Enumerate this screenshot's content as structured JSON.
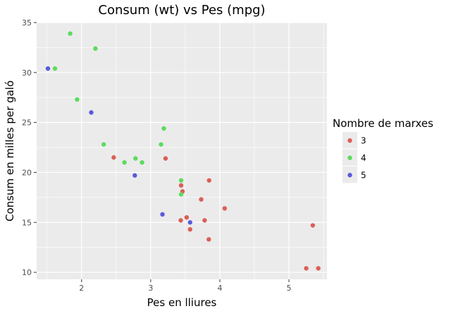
{
  "chart_data": {
    "type": "scatter",
    "title": "Consum (wt) vs Pes (mpg)",
    "xlabel": "Pes en lliures",
    "ylabel": "Consum en milles per galó",
    "xlim": [
      1.35,
      5.55
    ],
    "ylim": [
      9.3,
      35.0
    ],
    "xticks": [
      2,
      3,
      4,
      5
    ],
    "yticks": [
      10,
      15,
      20,
      25,
      30,
      35
    ],
    "grid": true,
    "legend": {
      "title": "Nombre de marxes",
      "placement": "right"
    },
    "series": [
      {
        "name": "3",
        "color": "#db5f57",
        "points": [
          {
            "x": 2.465,
            "y": 21.5
          },
          {
            "x": 3.215,
            "y": 21.4
          },
          {
            "x": 3.44,
            "y": 18.7
          },
          {
            "x": 3.46,
            "y": 18.1
          },
          {
            "x": 3.57,
            "y": 14.3
          },
          {
            "x": 4.07,
            "y": 16.4
          },
          {
            "x": 3.73,
            "y": 17.3
          },
          {
            "x": 3.78,
            "y": 15.2
          },
          {
            "x": 5.25,
            "y": 10.4
          },
          {
            "x": 5.424,
            "y": 10.4
          },
          {
            "x": 5.345,
            "y": 14.7
          },
          {
            "x": 3.52,
            "y": 15.5
          },
          {
            "x": 3.435,
            "y": 15.2
          },
          {
            "x": 3.84,
            "y": 13.3
          },
          {
            "x": 3.845,
            "y": 19.2
          }
        ]
      },
      {
        "name": "4",
        "color": "#5cdb5e",
        "points": [
          {
            "x": 2.62,
            "y": 21.0
          },
          {
            "x": 2.875,
            "y": 21.0
          },
          {
            "x": 2.32,
            "y": 22.8
          },
          {
            "x": 3.19,
            "y": 24.4
          },
          {
            "x": 3.15,
            "y": 22.8
          },
          {
            "x": 3.44,
            "y": 19.2
          },
          {
            "x": 3.44,
            "y": 17.8
          },
          {
            "x": 2.2,
            "y": 32.4
          },
          {
            "x": 1.615,
            "y": 30.4
          },
          {
            "x": 1.835,
            "y": 33.9
          },
          {
            "x": 1.935,
            "y": 27.3
          },
          {
            "x": 2.78,
            "y": 21.4
          }
        ]
      },
      {
        "name": "5",
        "color": "#5a5adb",
        "points": [
          {
            "x": 2.14,
            "y": 26.0
          },
          {
            "x": 1.513,
            "y": 30.4
          },
          {
            "x": 3.17,
            "y": 15.8
          },
          {
            "x": 2.77,
            "y": 19.7
          },
          {
            "x": 3.57,
            "y": 15.0
          }
        ]
      }
    ]
  }
}
